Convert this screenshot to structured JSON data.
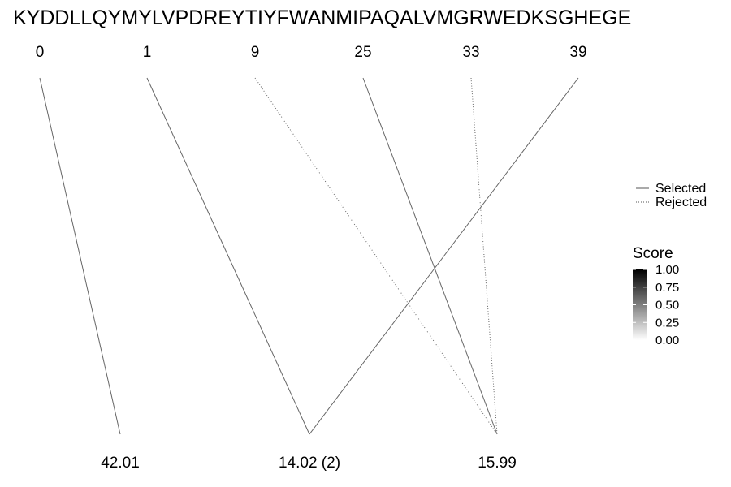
{
  "chart_data": {
    "type": "bipartite-line",
    "sequence": "KYDDLLQYMYLVPDREYTIYFWANMIPAQALVMGRWEDKSGHEGE",
    "top_positions": [
      0,
      1,
      9,
      25,
      33,
      39
    ],
    "bottom_masses": [
      "42.01",
      "14.02 (2)",
      "15.99"
    ],
    "links": [
      {
        "from": 0,
        "to": "42.01",
        "status": "Selected",
        "score": 0.6
      },
      {
        "from": 1,
        "to": "14.02 (2)",
        "status": "Selected",
        "score": 0.6
      },
      {
        "from": 9,
        "to": "15.99",
        "status": "Rejected",
        "score": 0.6
      },
      {
        "from": 25,
        "to": "15.99",
        "status": "Selected",
        "score": 0.6
      },
      {
        "from": 33,
        "to": "15.99",
        "status": "Rejected",
        "score": 0.6
      },
      {
        "from": 39,
        "to": "14.02 (2)",
        "status": "Selected",
        "score": 0.6
      }
    ],
    "legend": {
      "linetype": [
        {
          "label": "Selected",
          "style": "solid"
        },
        {
          "label": "Rejected",
          "style": "dotted"
        }
      ],
      "score": {
        "title": "Score",
        "ticks": [
          "1.00",
          "0.75",
          "0.50",
          "0.25",
          "0.00"
        ],
        "low_color": "#ffffff",
        "high_color": "#000000"
      }
    }
  }
}
